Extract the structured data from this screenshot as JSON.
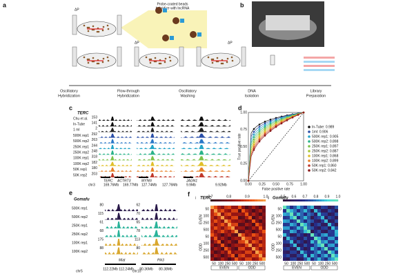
{
  "panel_a": {
    "label": "a",
    "note": [
      "Probe-coated beads",
      "hybridize with lncRNA"
    ],
    "dp": "ΔP",
    "steps": [
      [
        "Oscillatory",
        "Hybridization"
      ],
      [
        "Flow-through",
        "Hybridization"
      ],
      [
        "Oscillatory",
        "Washing"
      ],
      [
        "DNA",
        "Isolation"
      ],
      [
        "Library",
        "Preparation"
      ]
    ]
  },
  "panel_b": {
    "label": "b"
  },
  "panel_c": {
    "label": "c",
    "gene": "TERC",
    "tracks": [
      "Chu et al.",
      "In-Tube",
      "1 ml",
      "500K rep1",
      "500K rep2",
      "250K rep1",
      "250K rep2",
      "100K rep1",
      "100K rep2",
      "50K rep1",
      "50K rep2"
    ],
    "scales": [
      "153",
      "141",
      "2",
      "292",
      "263",
      "244",
      "248",
      "318",
      "182",
      "180",
      "203"
    ],
    "genes": [
      "TERC",
      "ACTRT3",
      "MYNN",
      "JAGN1"
    ],
    "chrom": "chr3",
    "coords": [
      "169.76Mb",
      "169.77Mb",
      "127.74Mb",
      "127.76Mb",
      "9.9Mb",
      "9.92Mb"
    ]
  },
  "panel_d": {
    "label": "d",
    "xlabel": "False positive rate",
    "ylabel": "True positive rate",
    "ticks": [
      "0.00",
      "0.25",
      "0.50",
      "0.75",
      "1.00"
    ],
    "legend": [
      "In-Tube: 0.989",
      "1ml: 0.906",
      "500K rep1: 0.905",
      "500K rep2: 0.898",
      "250K rep1: 0.897",
      "250K rep2: 0.887",
      "100K rep1: 0.868",
      "100K rep2: 0.899",
      "50K rep1: 0.860",
      "50K rep2: 0.842"
    ]
  },
  "panel_e": {
    "label": "e",
    "gene": "Gomafu",
    "tracks": [
      "500K rep1",
      "500K rep2",
      "250K rep1",
      "250K rep2",
      "100K rep1",
      "100K rep2"
    ],
    "scales_left": [
      "80",
      "115",
      "61",
      "68",
      "175",
      "88"
    ],
    "scales_right": [
      "62",
      "70",
      "65",
      "78",
      "113",
      "80"
    ],
    "genes": [
      "Miat",
      "Pik3"
    ],
    "chroms": [
      "chr5",
      "chr10"
    ],
    "coords": [
      "112.22Mb",
      "112.24Mb",
      "80.36Mb",
      "80.38Mb"
    ]
  },
  "panel_f": {
    "label": "f",
    "maps": [
      {
        "index": "i",
        "gene": "TERC",
        "bar": [
          "0.7",
          "0.8",
          "0.9",
          "1.0"
        ]
      },
      {
        "index": "ii",
        "gene": "Gomafu",
        "bar": [
          "0.5",
          "0.6",
          "0.7",
          "0.8",
          "0.9",
          "1.0"
        ]
      }
    ],
    "sizes": [
      "50",
      "100",
      "250",
      "500"
    ],
    "groups": [
      "EVEN",
      "ODD"
    ]
  }
}
